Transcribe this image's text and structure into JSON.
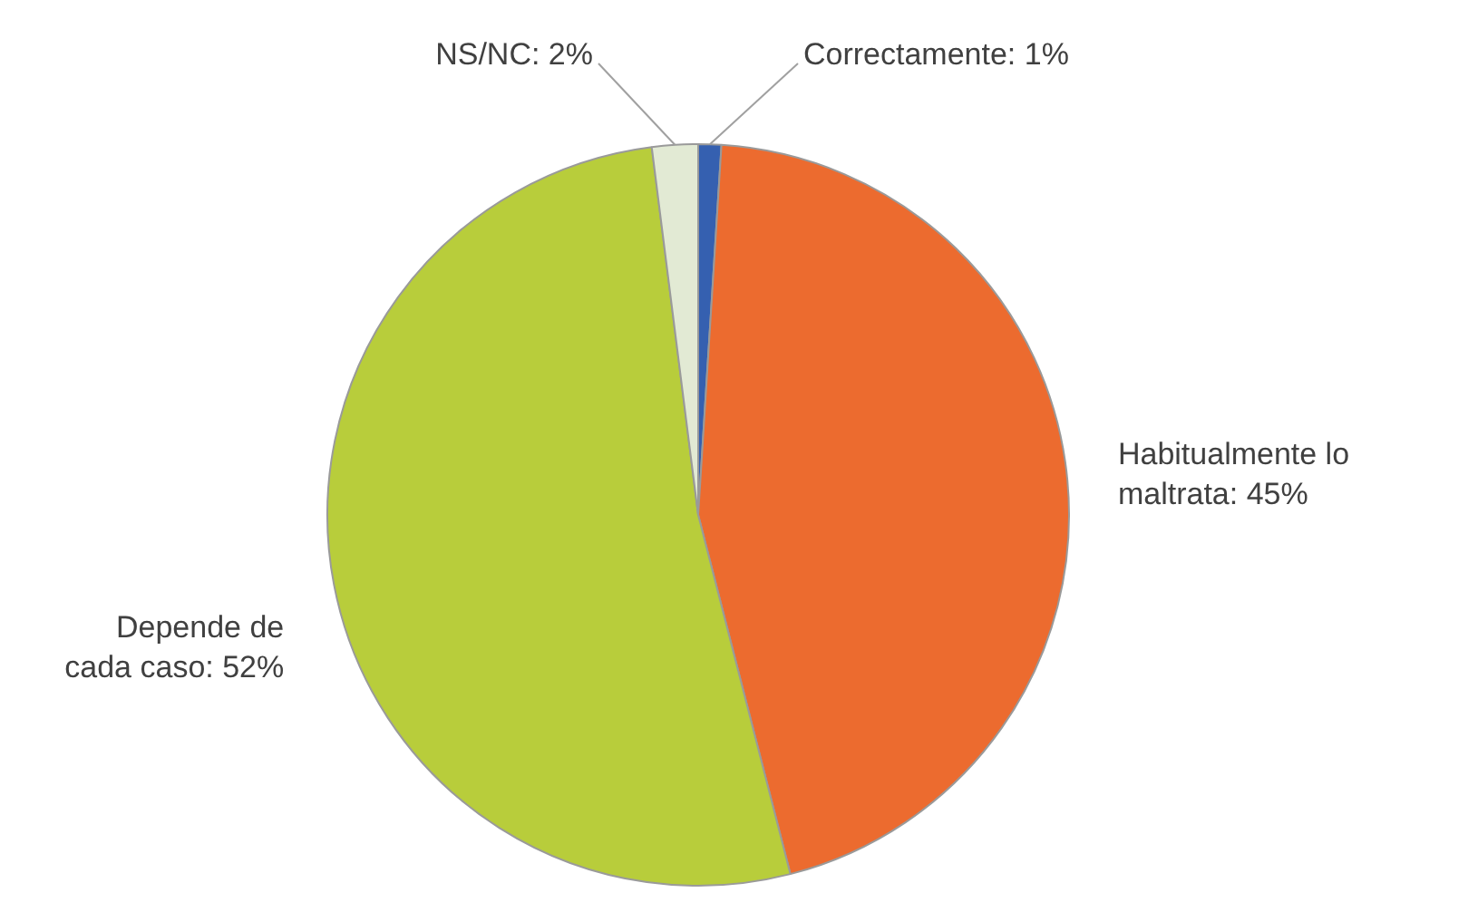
{
  "chart_data": {
    "type": "pie",
    "categories": [
      "Correctamente",
      "Habitualmente lo maltrata",
      "Depende de cada caso",
      "NS/NC"
    ],
    "values": [
      1,
      45,
      52,
      2
    ],
    "colors": [
      "#3560b0",
      "#ec6b2f",
      "#b8cd3b",
      "#e2ead4"
    ],
    "value_labels": [
      "1%",
      "45%",
      "52%",
      "2%"
    ],
    "legend": false
  }
}
